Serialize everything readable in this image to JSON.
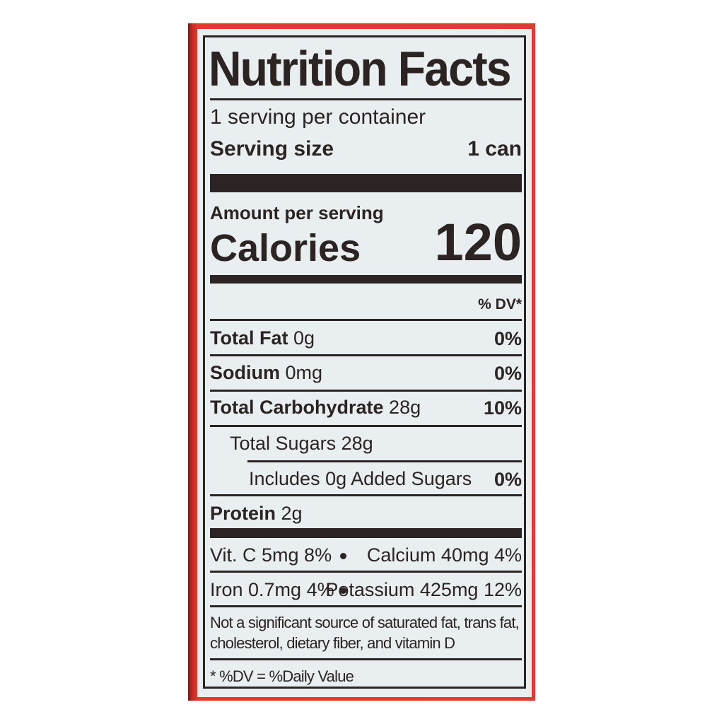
{
  "title": "Nutrition Facts",
  "servings_per_container": "1 serving per container",
  "serving_size": {
    "label": "Serving size",
    "value": "1 can"
  },
  "amount_per_serving": "Amount per serving",
  "calories": {
    "label": "Calories",
    "value": "120"
  },
  "dv_header": "% DV*",
  "nutrients": [
    {
      "label": "Total Fat",
      "amount": "0g",
      "dv": "0%"
    },
    {
      "label": "Sodium",
      "amount": "0mg",
      "dv": "0%"
    },
    {
      "label": "Total Carbohydrate",
      "amount": "28g",
      "dv": "10%"
    },
    {
      "label": "Total Sugars 28g",
      "amount": "",
      "dv": ""
    },
    {
      "label": "Includes 0g Added Sugars",
      "amount": "",
      "dv": "0%"
    },
    {
      "label": "Protein",
      "amount": "2g",
      "dv": ""
    }
  ],
  "vitamins": [
    {
      "left": "Vit. C 5mg 8%",
      "right": "Calcium 40mg 4%"
    },
    {
      "left": "Iron 0.7mg 4%",
      "right": "Potassium 425mg 12%"
    }
  ],
  "not_significant": [
    "Not a significant source of saturated fat, trans fat,",
    "cholesterol, dietary fiber, and vitamin D"
  ],
  "footnote": "* %DV = %Daily Value",
  "colors": {
    "can_red": "#e33a30",
    "ink": "#2b2422",
    "label_bg": "#e9eef0"
  }
}
